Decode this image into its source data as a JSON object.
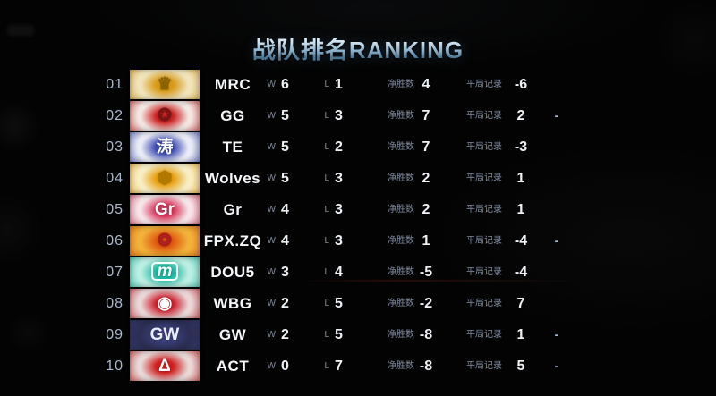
{
  "title": "战队排名RANKING",
  "columns": {
    "win_label": "W",
    "loss_label": "L",
    "net_wins_label": "净胜数",
    "draw_record_label": "平局记录"
  },
  "colors": {
    "title_gradient_top": "#f0f7fd",
    "title_gradient_bottom": "#47738f",
    "rank_text": "#a9b8cc",
    "team_name_text": "#f4f6f9",
    "stat_label_text": "#7f8ba0",
    "stat_value_text": "#eef2f6",
    "trailing_mark_text": "#aebfd4",
    "background": "#030303"
  },
  "teams": [
    {
      "rank": "01",
      "name": "MRC",
      "wins": "6",
      "losses": "1",
      "net_wins": "4",
      "draw_record": "-6",
      "trailing_mark": "",
      "logo": {
        "name": "mrc-crown-logo",
        "glyph": "♛",
        "glyph_color": "#8a6200",
        "base": "#f0e4bd",
        "splash": "#d89a18",
        "boxed": false
      }
    },
    {
      "rank": "02",
      "name": "GG",
      "wins": "5",
      "losses": "3",
      "net_wins": "7",
      "draw_record": "2",
      "trailing_mark": "-",
      "logo": {
        "name": "gg-circle-emblem-logo",
        "glyph": "✪",
        "glyph_color": "#7c1414",
        "base": "#f2e6e2",
        "splash": "#cc2525",
        "boxed": false
      }
    },
    {
      "rank": "03",
      "name": "TE",
      "wins": "5",
      "losses": "2",
      "net_wins": "7",
      "draw_record": "-3",
      "trailing_mark": "",
      "logo": {
        "name": "te-calligraphy-logo",
        "glyph": "涛",
        "glyph_color": "#ffffff",
        "base": "#e9ecf5",
        "splash": "#3c4ab2",
        "boxed": false
      }
    },
    {
      "rank": "04",
      "name": "Wolves",
      "wins": "5",
      "losses": "3",
      "net_wins": "2",
      "draw_record": "1",
      "trailing_mark": "",
      "logo": {
        "name": "wolves-hexagon-wolf-logo",
        "glyph": "⬢",
        "glyph_color": "#b07a00",
        "base": "#f7eec6",
        "splash": "#e8a012",
        "boxed": false
      }
    },
    {
      "rank": "05",
      "name": "Gr",
      "wins": "4",
      "losses": "3",
      "net_wins": "2",
      "draw_record": "1",
      "trailing_mark": "",
      "logo": {
        "name": "gr-glory-logo",
        "glyph": "Gr",
        "glyph_color": "#ffffff",
        "base": "#f5e4e8",
        "splash": "#d8345a",
        "boxed": false
      }
    },
    {
      "rank": "06",
      "name": "FPX.ZQ",
      "wins": "4",
      "losses": "3",
      "net_wins": "1",
      "draw_record": "-4",
      "trailing_mark": "-",
      "logo": {
        "name": "fpx-phoenix-logo",
        "glyph": "❂",
        "glyph_color": "#b01b1b",
        "base": "#f2b23a",
        "splash": "#e05a10",
        "boxed": false
      }
    },
    {
      "rank": "07",
      "name": "DOU5",
      "wins": "3",
      "losses": "4",
      "net_wins": "-5",
      "draw_record": "-4",
      "trailing_mark": "",
      "logo": {
        "name": "dou5-m-badge-logo",
        "glyph": "m",
        "glyph_color": "#ffffff",
        "base": "#bdeee2",
        "splash": "#17b8a0",
        "boxed": true
      }
    },
    {
      "rank": "08",
      "name": "WBG",
      "wins": "2",
      "losses": "5",
      "net_wins": "-2",
      "draw_record": "7",
      "trailing_mark": "",
      "logo": {
        "name": "wbg-weibo-eye-logo",
        "glyph": "◉",
        "glyph_color": "#ffffff",
        "base": "#e9d6d6",
        "splash": "#cc1f2d",
        "boxed": false
      }
    },
    {
      "rank": "09",
      "name": "GW",
      "wins": "2",
      "losses": "5",
      "net_wins": "-8",
      "draw_record": "1",
      "trailing_mark": "-",
      "logo": {
        "name": "gw-wings-logo",
        "glyph": "GW",
        "glyph_color": "#e8ecff",
        "base": "#2c2f55",
        "splash": "#3a3f7a",
        "boxed": false
      }
    },
    {
      "rank": "10",
      "name": "ACT",
      "wins": "0",
      "losses": "7",
      "net_wins": "-8",
      "draw_record": "5",
      "trailing_mark": "-",
      "logo": {
        "name": "act-emblem-logo",
        "glyph": "Δ",
        "glyph_color": "#ffffff",
        "base": "#e8d8d8",
        "splash": "#cf1f1f",
        "boxed": false
      }
    }
  ]
}
